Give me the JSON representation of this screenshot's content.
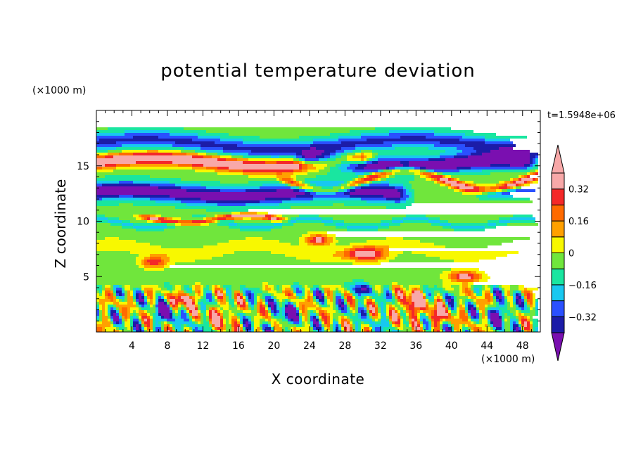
{
  "chart_data": {
    "type": "heatmap",
    "title": "potential temperature deviation",
    "xlabel": "X coordinate",
    "ylabel": "Z coordinate",
    "x_unit_label": "(×1000 m)",
    "y_unit_label": "(×1000 m)",
    "time_label": "t=1.5948e+06",
    "xlim": [
      0,
      50
    ],
    "ylim": [
      0,
      20
    ],
    "x_ticks": [
      4,
      8,
      12,
      16,
      20,
      24,
      28,
      32,
      36,
      40,
      44,
      48
    ],
    "x_tick_labels": [
      "4",
      "8",
      "12",
      "16",
      "20",
      "24",
      "28",
      "32",
      "36",
      "40",
      "44",
      "48"
    ],
    "y_ticks": [
      5,
      10,
      15
    ],
    "y_tick_labels": [
      "5",
      "10",
      "15"
    ],
    "colorbar": {
      "levels": [
        -0.4,
        -0.32,
        -0.24,
        -0.16,
        -0.08,
        0,
        0.08,
        0.16,
        0.24,
        0.32,
        0.4
      ],
      "tick_values": [
        -0.32,
        -0.16,
        0,
        0.16,
        0.32
      ],
      "tick_labels": [
        "−0.32",
        "−0.16",
        "0",
        "0.16",
        "0.32"
      ],
      "colors": [
        "#7a0fb0",
        "#1c1ca8",
        "#2a50ff",
        "#18c8f0",
        "#19e6a0",
        "#70e63c",
        "#f8f800",
        "#ffa000",
        "#ff6a00",
        "#f42828",
        "#f8a8a8"
      ],
      "extend": "both"
    },
    "background_value": -0.04,
    "features": [
      {
        "kind": "band",
        "value": -0.3,
        "z": 16.9,
        "thickness": 1.6,
        "x_from": 0,
        "x_to": 50,
        "wave_amp": 0.5,
        "wave_len": 30,
        "phase": 0.4
      },
      {
        "kind": "band",
        "value": 0.5,
        "z": 15.3,
        "thickness": 1.2,
        "x_from": 0,
        "x_to": 30,
        "wave_amp": 0.4,
        "wave_len": 26,
        "phase": 0.0
      },
      {
        "kind": "band",
        "value": -0.5,
        "z": 15.2,
        "thickness": 1.5,
        "x_from": 24,
        "x_to": 48,
        "wave_amp": 0.3,
        "wave_len": 22,
        "phase": 1.1
      },
      {
        "kind": "band",
        "value": 0.44,
        "z": 13.7,
        "thickness": 0.8,
        "x_from": 22,
        "x_to": 50,
        "wave_amp": 0.9,
        "wave_len": 18,
        "phase": 2.0
      },
      {
        "kind": "band",
        "value": -0.42,
        "z": 12.5,
        "thickness": 1.7,
        "x_from": 0,
        "x_to": 34,
        "wave_amp": 0.3,
        "wave_len": 24,
        "phase": 0.7
      },
      {
        "kind": "band",
        "value": -0.3,
        "z": 12.4,
        "thickness": 1.0,
        "x_from": 44,
        "x_to": 50,
        "wave_amp": 0.2,
        "wave_len": 20,
        "phase": 0.0
      },
      {
        "kind": "band",
        "value": 0.4,
        "z": 10.2,
        "thickness": 0.5,
        "x_from": 6,
        "x_to": 20,
        "wave_amp": 0.3,
        "wave_len": 14,
        "phase": 0.2
      },
      {
        "kind": "band",
        "value": -0.14,
        "z": 9.8,
        "thickness": 0.6,
        "x_from": 0,
        "x_to": 50,
        "wave_amp": 0.4,
        "wave_len": 12,
        "phase": 1.6
      },
      {
        "kind": "band",
        "value": 0.1,
        "z": 7.4,
        "thickness": 1.2,
        "x_from": 0,
        "x_to": 50,
        "wave_amp": 0.5,
        "wave_len": 16,
        "phase": 0.9
      },
      {
        "kind": "blob",
        "value": 0.42,
        "x": 30.5,
        "z": 7.0,
        "rx": 2.2,
        "rz": 0.6
      },
      {
        "kind": "blob",
        "value": 0.4,
        "x": 25.0,
        "z": 8.3,
        "rx": 1.4,
        "rz": 0.5
      },
      {
        "kind": "blob",
        "value": 0.36,
        "x": 6.5,
        "z": 6.3,
        "rx": 1.4,
        "rz": 0.5
      },
      {
        "kind": "blob",
        "value": 0.45,
        "x": 10.0,
        "z": 3.0,
        "rx": 1.3,
        "rz": 0.7
      },
      {
        "kind": "blob",
        "value": 0.45,
        "x": 35.5,
        "z": 2.5,
        "rx": 1.6,
        "rz": 1.2
      },
      {
        "kind": "blob",
        "value": 0.42,
        "x": 41.5,
        "z": 5.0,
        "rx": 1.8,
        "rz": 0.5
      },
      {
        "kind": "blob",
        "value": -0.4,
        "x": 7.8,
        "z": 1.8,
        "rx": 0.9,
        "rz": 1.2
      },
      {
        "kind": "blob",
        "value": -0.42,
        "x": 21.5,
        "z": 1.6,
        "rx": 0.9,
        "rz": 1.0
      },
      {
        "kind": "blob",
        "value": -0.4,
        "x": 45.5,
        "z": 1.6,
        "rx": 1.0,
        "rz": 1.1
      },
      {
        "kind": "blob",
        "value": -0.36,
        "x": 29.5,
        "z": 3.8,
        "rx": 1.0,
        "rz": 0.6
      },
      {
        "kind": "blob",
        "value": 0.36,
        "x": 14.0,
        "z": 1.5,
        "rx": 1.3,
        "rz": 1.0
      },
      {
        "kind": "blob",
        "value": 0.34,
        "x": 38.5,
        "z": 1.4,
        "rx": 1.2,
        "rz": 0.9
      },
      {
        "kind": "turbulence",
        "z_from": 0,
        "z_to": 4.5,
        "amplitude": 0.3
      }
    ]
  }
}
